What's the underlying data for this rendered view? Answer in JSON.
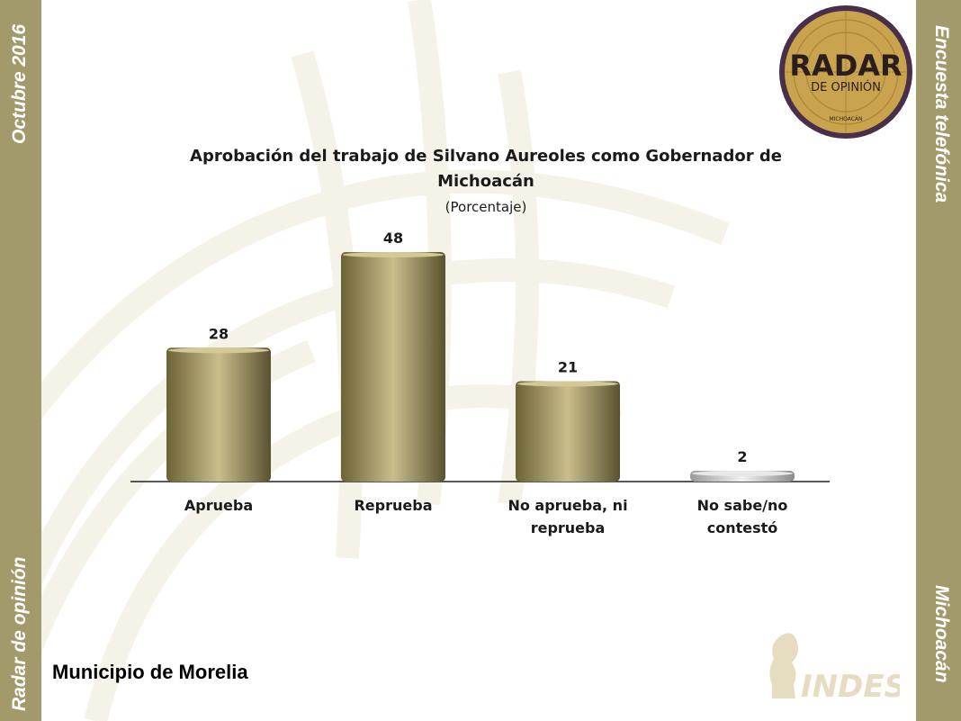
{
  "side": {
    "left_top": "Octubre 2016",
    "left_bottom": "Radar de opinión",
    "right_top": "Encuesta telefónica",
    "right_bottom": "Michoacán"
  },
  "logo_radar": {
    "line1": "RADAR",
    "line2": "DE OPINIÓN",
    "line3": "MICHOACÁN"
  },
  "logo_indes": {
    "text": "INDES"
  },
  "footer": {
    "municipio": "Municipio de Morelia"
  },
  "colors": {
    "bar": "#8c8250",
    "bar_highlight": "#c9be8c",
    "bar_gray": "#c8c8c8",
    "side": "#a39a6c"
  },
  "chart_data": {
    "type": "bar",
    "title_line1": "Aprobación del trabajo de Silvano Aureoles como Gobernador de",
    "title_line2": "Michoacán",
    "subtitle": "(Porcentaje)",
    "categories": [
      {
        "line1": "Aprueba",
        "line2": ""
      },
      {
        "line1": "Reprueba",
        "line2": ""
      },
      {
        "line1": "No aprueba, ni",
        "line2": "reprueba"
      },
      {
        "line1": "No sabe/no",
        "line2": "contestó"
      }
    ],
    "values": [
      28,
      48,
      21,
      2
    ],
    "ylim": [
      0,
      48
    ]
  }
}
